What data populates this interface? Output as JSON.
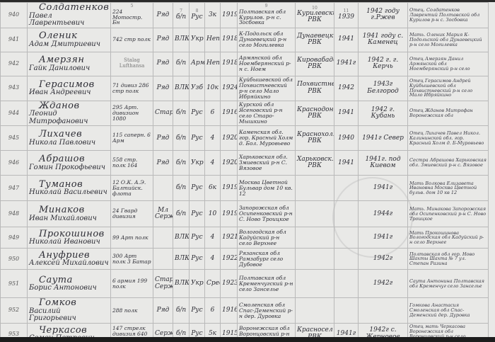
{
  "header_column_numbers": [
    "",
    "",
    "5",
    "",
    "7",
    "8",
    "",
    "",
    "9",
    "10",
    "11",
    "",
    ""
  ],
  "rows": [
    {
      "num": "940",
      "surname": "Солдатенков",
      "given": "Павел Лаврентьевич",
      "unit": "224 Мотостр. Бн",
      "rank": "Ряд",
      "party": "б/п",
      "nat": "Рус",
      "edu": "3к",
      "year": "1919",
      "address": "Полтавская обл Курилов. р-н с. Зосбовка",
      "office": "Курилевский РВК",
      "draft": "1939",
      "missing": "1942 году г.Ржев",
      "relatives": "Отец. Солдатенков Лаврентий Полтавской обл Курилов р-н с. Зосбовка"
    },
    {
      "num": "941",
      "surname": "Оленик",
      "given": "Адам Дмитриевич",
      "unit": "742 стр полк",
      "rank": "Ряд",
      "party": "ВЛКСМ",
      "nat": "Укр",
      "edu": "Неп",
      "year": "1918",
      "address": "К-Подольск обл Дунаевецкий р-н село Могилевка",
      "office": "Дунаевецкий РВК",
      "draft": "1941",
      "missing": "1941 году с. Каменец",
      "relatives": "Мать. Оленик Мария К-Подольской обл Дунаевецкий р-н село Могилевка"
    },
    {
      "num": "942",
      "surname": "Амерзян",
      "given": "Гайк Данилович",
      "unit": "",
      "rank": "Ряд",
      "party": "б/п",
      "nat": "Арм",
      "edu": "Неп",
      "year": "1918",
      "address": "Армянской обл Ноемберянский р-н с. Ноем",
      "office": "Кировабадск РВК",
      "draft": "1941г",
      "missing": "1942 г. г. Керчь",
      "relatives": "Отец Амерзян Данил Армянской обл Ноемберянский р-н село"
    },
    {
      "num": "943",
      "surname": "Герасимов",
      "given": "Иван Андреевич",
      "unit": "71 дивиз 286 стр полк",
      "rank": "Ряд",
      "party": "ВЛКСМ",
      "nat": "Узб",
      "edu": "10к",
      "year": "1924",
      "address": "Куйбышевской обл Похвистневский р-н село Мало Ибряйкино",
      "office": "Похвистнев РВК",
      "draft": "1942",
      "missing": "1943г Белгород",
      "relatives": "Отец Герасимов Андрей Куйбышевской обл Похвистневский р-н село Мало Ибряйкино"
    },
    {
      "num": "944",
      "surname": "Жданов",
      "given": "Леонид Митрофанович",
      "unit": "295 Арт. дивизион 1080",
      "rank": "Стар.",
      "party": "б/п",
      "nat": "Рус",
      "edu": "6",
      "year": "1916",
      "address": "Курской обл Ясеновский р-н село Старо-Мышкино",
      "office": "Краснодон РВК",
      "draft": "1941",
      "missing": "1942 г. Кубань",
      "relatives": "Отец Жданов Митрофан Воронежская обл"
    },
    {
      "num": "945",
      "surname": "Лихачев",
      "given": "Никола Павлович",
      "unit": "115 саперн. 6 Арм",
      "rank": "Ряд",
      "party": "б/п",
      "nat": "Рус",
      "edu": "4",
      "year": "1920",
      "address": "Каменская обл. гор. Красный Холм д. Бол. Муровьево",
      "office": "Краснохолм РВК",
      "draft": "1940",
      "missing": "1941г Север",
      "relatives": "Отец Лихачев Павел Никол. Калининской обл. гор. Красный Холм д. Б-Муровьево"
    },
    {
      "num": "946",
      "surname": "Абрашов",
      "given": "Гомин Прокофьевич",
      "unit": "558 стр. полк 164",
      "rank": "Ряд",
      "party": "б/п",
      "nat": "Укр",
      "edu": "4",
      "year": "1920",
      "address": "Харьковская обл. Змиевский р-н С. Вязовое",
      "office": "Харьковск. РВК",
      "draft": "1941",
      "missing": "1941г. под Киевом",
      "relatives": "Сестра Абрашова Харьковская обл. Змиевский р-н с. Вязовое"
    },
    {
      "num": "947",
      "surname": "Туманов",
      "given": "Николай Васильевич",
      "unit": "12 О.К. А.Э. Балтийск. флота",
      "rank": "",
      "party": "б/п",
      "nat": "Рус",
      "edu": "6к",
      "year": "1919",
      "address": "Москва Цветной Бульвар дом 10 кв. 12",
      "office": "",
      "draft": "",
      "missing": "1941г",
      "relatives": "Мать Волкова Елизавета Ивановна Москва Цветной бульв. дом 10 кв 12"
    },
    {
      "num": "948",
      "surname": "Минаков",
      "given": "Иван Михайлович",
      "unit": "24 Гвард дивизия",
      "rank": "Мл Серж",
      "party": "б/п",
      "nat": "Рус",
      "edu": "10",
      "year": "1919",
      "address": "Запорожская обл Осипенковский р-н С. Ново Троицкое",
      "office": "",
      "draft": "",
      "missing": "1944г",
      "relatives": "Мать. Минакова Запорожская обл Осипенковский р-н С. Ново Троицкое"
    },
    {
      "num": "949",
      "surname": "Прокошинов",
      "given": "Николай Иванович",
      "unit": "99 Арт полк",
      "rank": "",
      "party": "ВЛКСМ",
      "nat": "Рус",
      "edu": "4",
      "year": "1921",
      "address": "Вологодская обл Кадуйский р-н село Верхнее",
      "office": "",
      "draft": "",
      "missing": "1941г",
      "relatives": "Мать Прокошинова Вологодская обл Кадуйский р-н село Верхнее"
    },
    {
      "num": "950",
      "surname": "Ануфриев",
      "given": "Алексей Михайлович",
      "unit": "300 Арт полк 3 Батар",
      "rank": "",
      "party": "ВЛКСМ",
      "nat": "Рус",
      "edu": "4",
      "year": "1922",
      "address": "Рязанская обл Рамзабург село Дубовое",
      "office": "",
      "draft": "",
      "missing": "1942г",
      "relatives": "Полтавская обл гор. Ново Шахты Шахта № 7 ул. Степан Разина"
    },
    {
      "num": "951",
      "surname": "Саута",
      "given": "Борис Антонович",
      "unit": "6 армия 199 полк",
      "rank": "Стар Серж",
      "party": "ВЛКСМ",
      "nat": "Укр",
      "edu": "Средн",
      "year": "1923",
      "address": "Полтавская обл Кременчугский р-н село Занселье",
      "office": "",
      "draft": "",
      "missing": "1942г",
      "relatives": "Саута Антонина Полтавская обл Кременчуг село Занселье"
    },
    {
      "num": "952",
      "surname": "Гомков",
      "given": "Василий Григорьевич",
      "unit": "288 полк",
      "rank": "Ряд",
      "party": "б/п",
      "nat": "Рус",
      "edu": "6",
      "year": "1916",
      "address": "Смоленская обл Спас-Деменский р-н дер. Дуровка",
      "office": "",
      "draft": "",
      "missing": "",
      "relatives": "Гомкова Анастасия Смоленская обл Спас-Деменский дер. Дуровка"
    },
    {
      "num": "953",
      "surname": "Черкасов",
      "given": "Семен Петрович",
      "unit": "147 стрелк дивизия 640 стр полк 2 р",
      "rank": "Серж",
      "party": "б/п",
      "nat": "Рус",
      "edu": "5к",
      "year": "1915",
      "address": "Воронежская обл Воронцовский р-н село Клемовка",
      "office": "Красносел РВК",
      "draft": "1941г",
      "missing": "1942г с. Жерновое",
      "relatives": "Отец мать Черкасова Воронежская обл Воронцовский р-н село Клемовка"
    }
  ],
  "stamp_text": "Stalag Lufthansa"
}
